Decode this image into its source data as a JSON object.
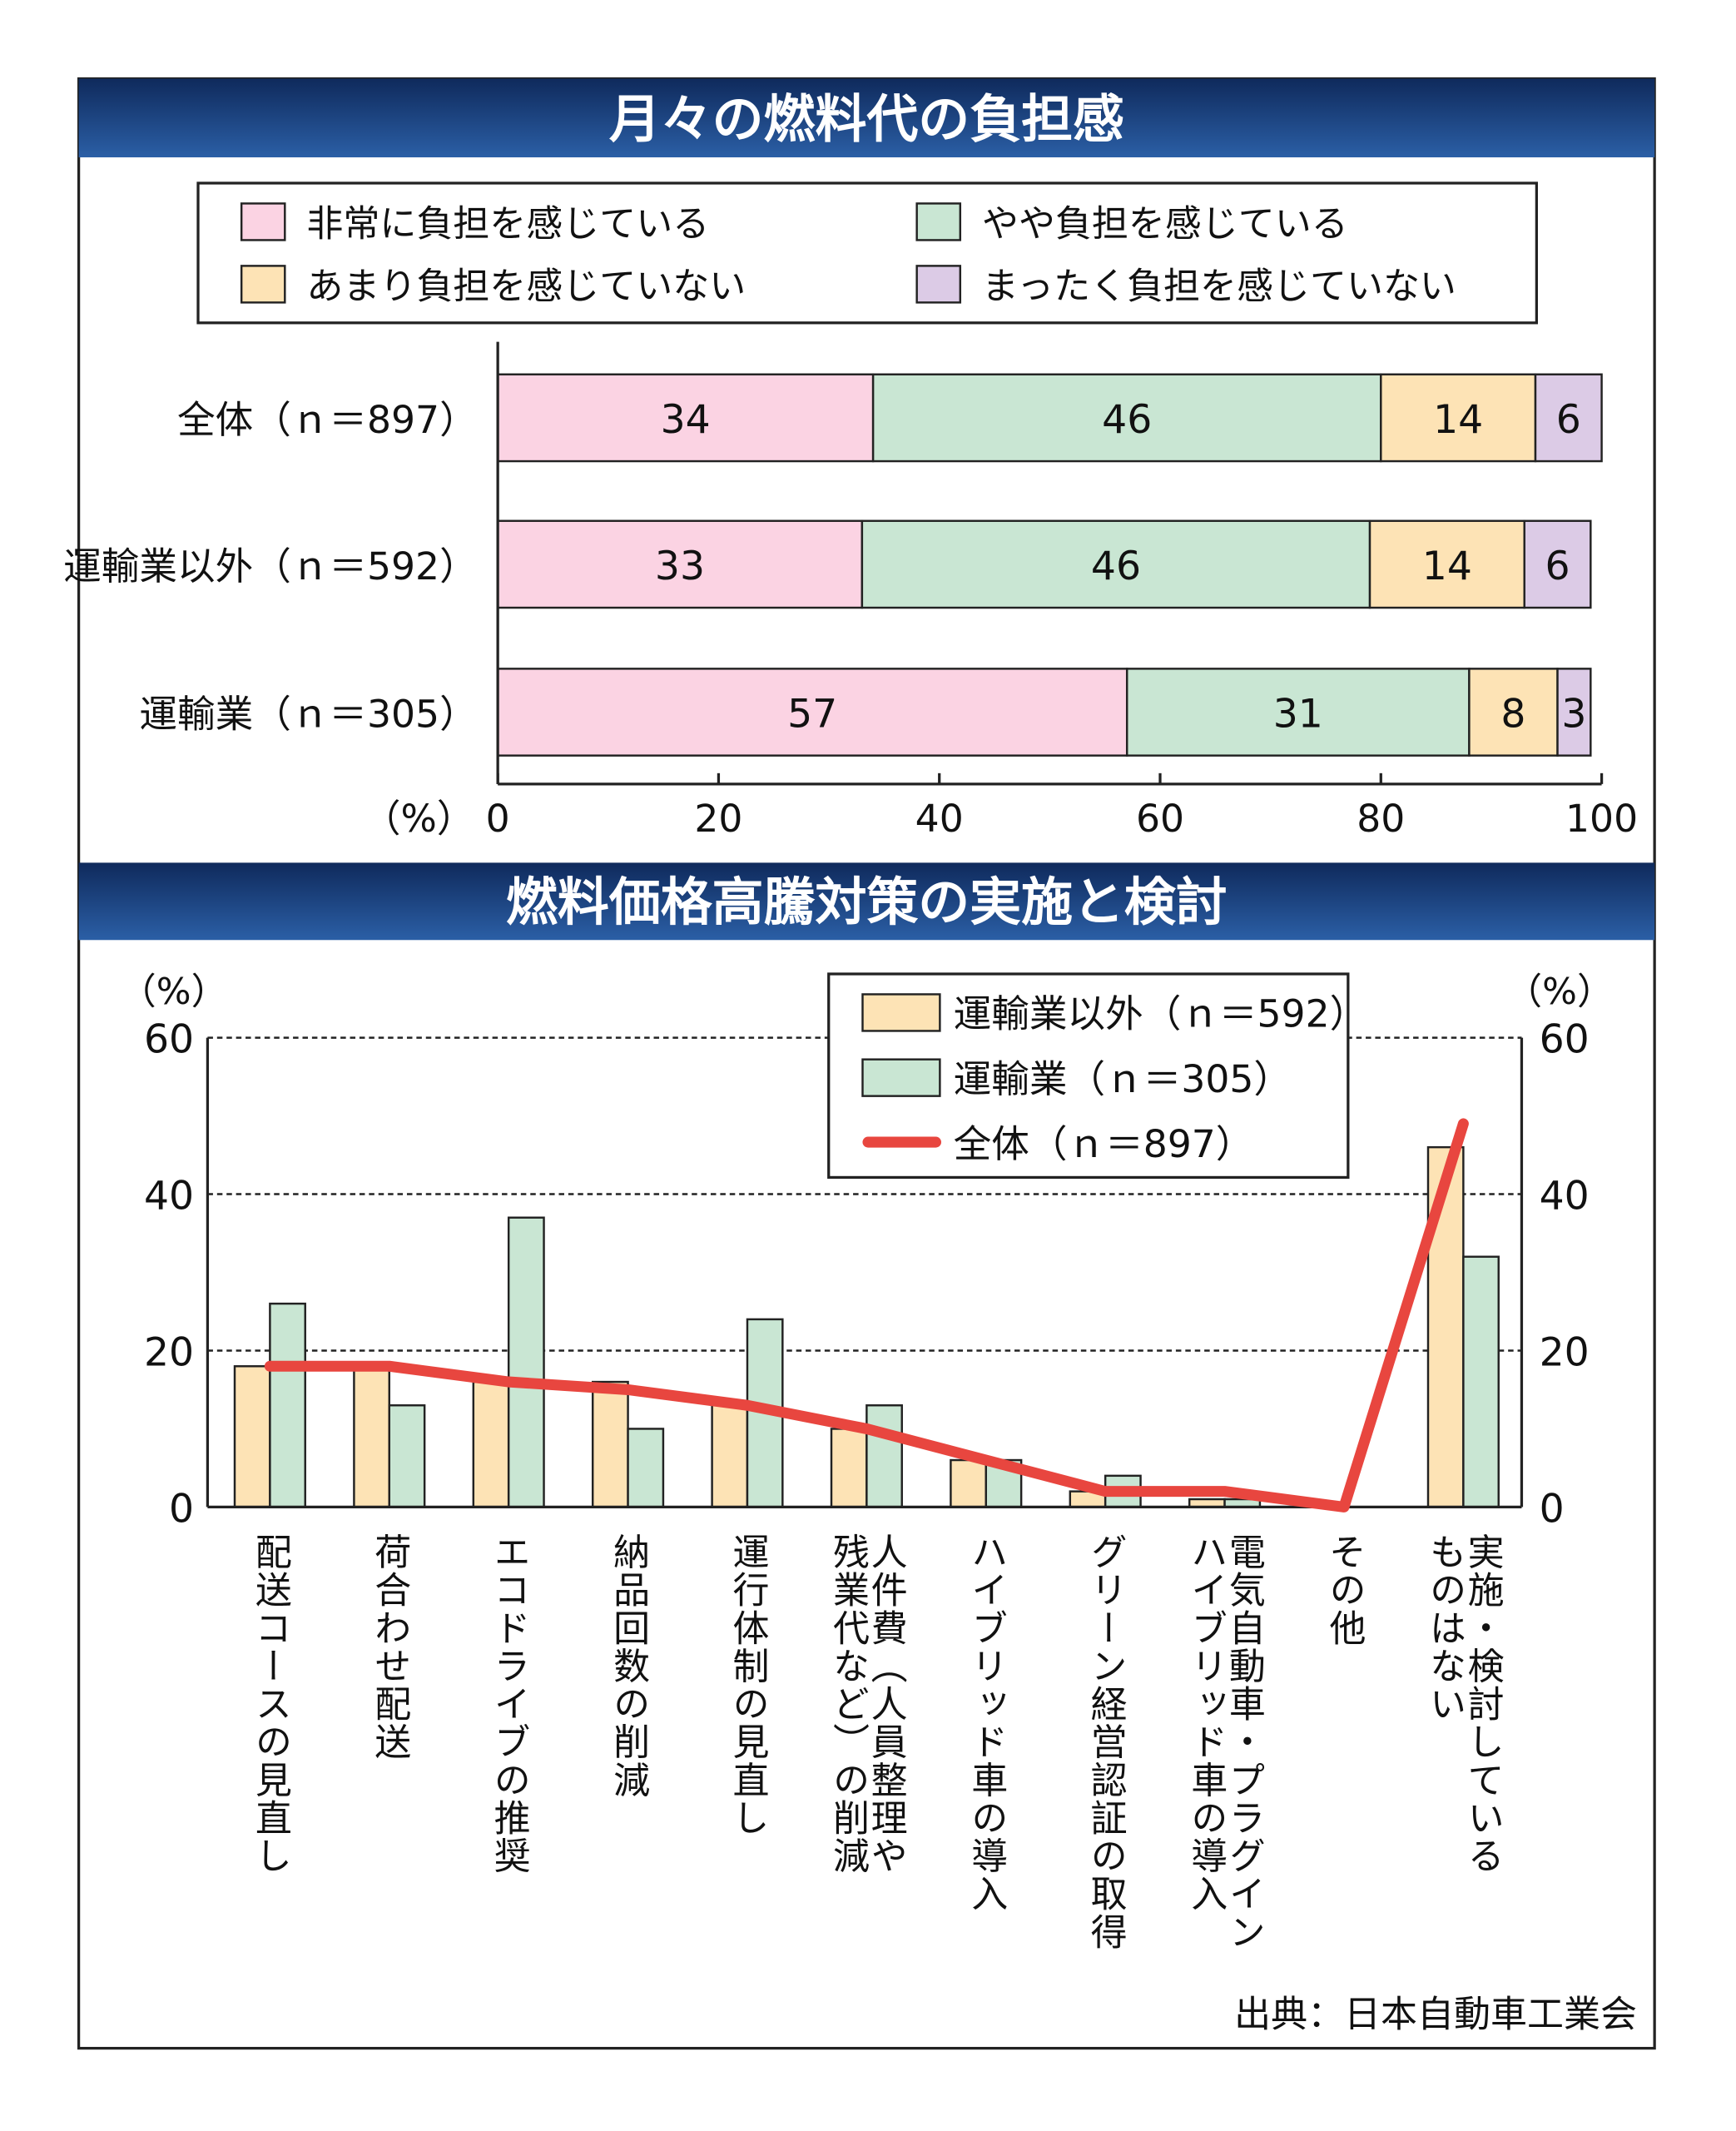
{
  "colors": {
    "pink": "#fbd3e3",
    "green": "#c9e6d3",
    "orange": "#fde3b5",
    "purple": "#dccbe6",
    "red": "#e8463f",
    "navy": "#1c3d78"
  },
  "chart_data": [
    {
      "type": "bar",
      "stacked": true,
      "orientation": "horizontal",
      "title": "月々の燃料代の負担感",
      "unit_label": "（%）",
      "xlim": [
        0,
        100
      ],
      "xticks": [
        "0",
        "20",
        "40",
        "60",
        "80",
        "100"
      ],
      "legend": [
        "非常に負担を感じている",
        "やや負担を感じている",
        "あまり負担を感じていない",
        "まったく負担を感じていない"
      ],
      "categories": [
        "全体（ｎ＝897）",
        "運輸業以外（ｎ＝592）",
        "運輸業（ｎ＝305）"
      ],
      "series": [
        {
          "name": "非常に負担を感じている",
          "values": [
            34,
            33,
            57
          ]
        },
        {
          "name": "やや負担を感じている",
          "values": [
            46,
            46,
            31
          ]
        },
        {
          "name": "あまり負担を感じていない",
          "values": [
            14,
            14,
            8
          ]
        },
        {
          "name": "まったく負担を感じていない",
          "values": [
            6,
            6,
            3
          ]
        }
      ]
    },
    {
      "type": "bar",
      "title": "燃料価格高騰対策の実施と検討",
      "unit_label": "（%）",
      "ylim": [
        0,
        60
      ],
      "yticks": [
        "0",
        "20",
        "40",
        "60"
      ],
      "categories": [
        [
          "配送コースの見直し"
        ],
        [
          "荷合わせ配送"
        ],
        [
          "エコドライブの推奨"
        ],
        [
          "納品回数の削減"
        ],
        [
          "運行体制の見直し"
        ],
        [
          "人件費（人員整理や",
          "残業代など）の削減"
        ],
        [
          "ハイブリッド車の導入"
        ],
        [
          "グリーン経営認証の取得"
        ],
        [
          "電気自動車・プラグイン",
          "ハイブリッド車の導入"
        ],
        [
          "その他"
        ],
        [
          "実施・検討している",
          "ものはない"
        ]
      ],
      "series": [
        {
          "name": "運輸業以外（ｎ＝592）",
          "type": "bar",
          "values": [
            18,
            18,
            16,
            16,
            13,
            10,
            6,
            2,
            1,
            0,
            46
          ]
        },
        {
          "name": "運輸業（ｎ＝305）",
          "type": "bar",
          "values": [
            26,
            13,
            37,
            10,
            24,
            13,
            6,
            4,
            1,
            0,
            32
          ]
        },
        {
          "name": "全体（ｎ＝897）",
          "type": "line",
          "values": [
            18,
            18,
            16,
            15,
            13,
            10,
            6,
            2,
            2,
            0,
            49
          ]
        }
      ]
    }
  ],
  "source": "出典：日本自動車工業会"
}
